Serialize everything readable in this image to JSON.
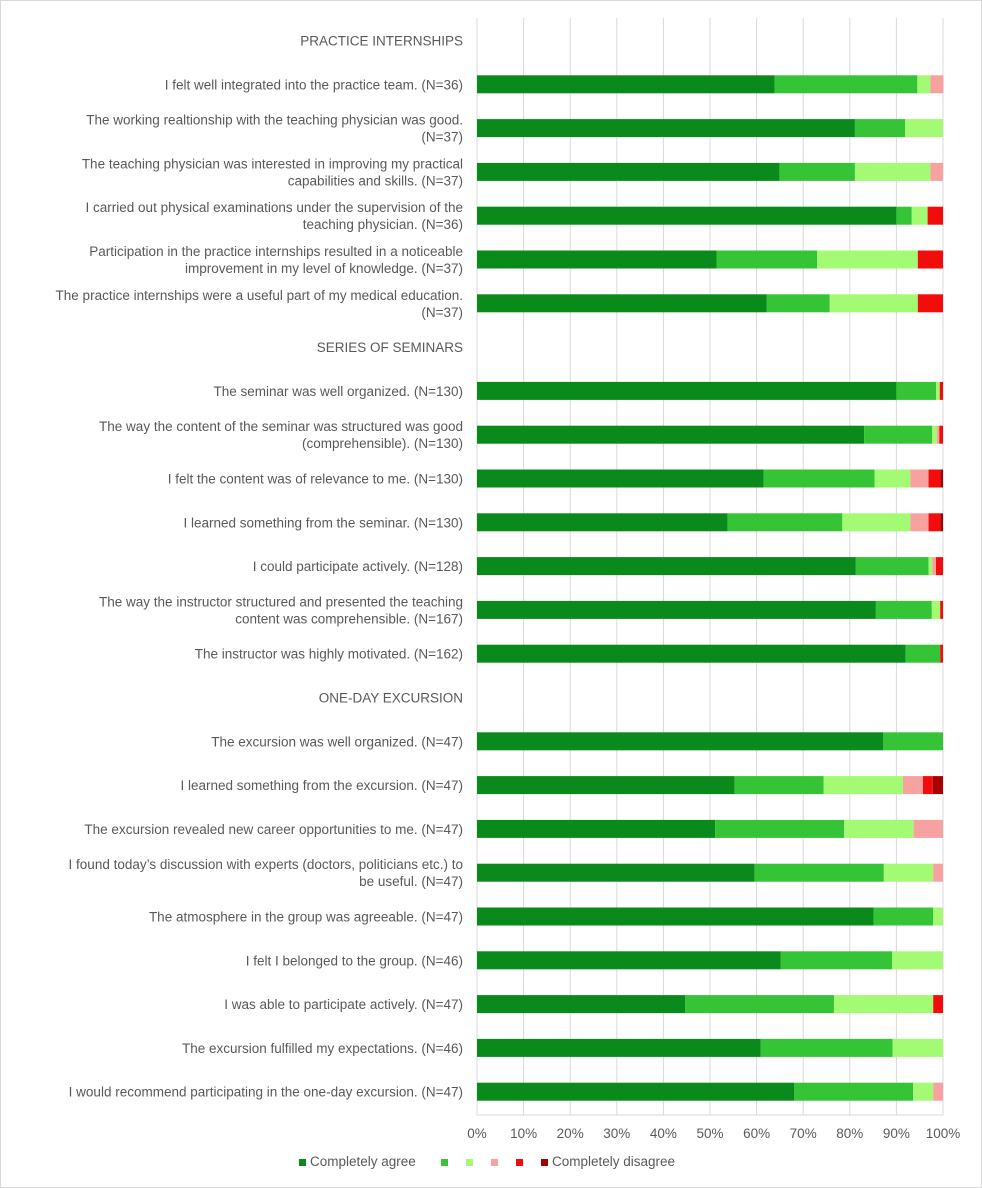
{
  "chart_data": {
    "type": "bar",
    "orientation": "horizontal",
    "stacked": "percent",
    "xlim": [
      0,
      100
    ],
    "x_ticks": [
      "0%",
      "10%",
      "20%",
      "30%",
      "40%",
      "50%",
      "60%",
      "70%",
      "80%",
      "90%",
      "100%"
    ],
    "grid": true,
    "legend_position": "bottom",
    "legend": [
      "Completely agree",
      "",
      "",
      "",
      "",
      "Completely disagree"
    ],
    "colors": [
      "#0a8a1a",
      "#35c435",
      "#a3fa73",
      "#f7a1a1",
      "#f30c0c",
      "#a80000"
    ],
    "sections": [
      {
        "title": "PRACTICE INTERNSHIPS",
        "items": [
          {
            "lines": [
              "I felt well integrated into the practice team. (N=36)"
            ],
            "values": [
              63.9,
              30.6,
              2.8,
              2.8,
              0,
              0
            ]
          },
          {
            "lines": [
              "The working realtionship with the teaching physician was good.",
              "(N=37)"
            ],
            "values": [
              81.1,
              10.8,
              8.1,
              0,
              0,
              0
            ]
          },
          {
            "lines": [
              "The teaching physician was interested in improving my practical",
              "capabilities and skills. (N=37)"
            ],
            "values": [
              64.9,
              16.2,
              16.2,
              2.7,
              0,
              0
            ]
          },
          {
            "lines": [
              "I carried out physical examinations under the supervision of the",
              "teaching physician. (N=36)"
            ],
            "values": [
              90.0,
              3.3,
              3.4,
              0,
              3.3,
              0
            ]
          },
          {
            "lines": [
              "Participation in the practice internships resulted in a noticeable",
              "improvement in my level of knowledge. (N=37)"
            ],
            "values": [
              51.4,
              21.6,
              21.6,
              0,
              5.4,
              0
            ]
          },
          {
            "lines": [
              "The practice internships were a useful part of my medical education.",
              "(N=37)"
            ],
            "values": [
              62.2,
              13.5,
              18.9,
              0,
              5.4,
              0
            ]
          }
        ]
      },
      {
        "title": "SERIES OF SEMINARS",
        "items": [
          {
            "lines": [
              "The seminar was well organized. (N=130)"
            ],
            "values": [
              90.0,
              8.5,
              0.8,
              0,
              0.7,
              0
            ]
          },
          {
            "lines": [
              "The way the content of the seminar was structured was good",
              "(comprehensible). (N=130)"
            ],
            "values": [
              83.1,
              14.6,
              1.0,
              0.5,
              0.8,
              0
            ]
          },
          {
            "lines": [
              "I felt the content was of relevance to me. (N=130)"
            ],
            "values": [
              61.5,
              23.8,
              7.7,
              3.9,
              2.5,
              0.6
            ]
          },
          {
            "lines": [
              "I learned something from the seminar. (N=130)"
            ],
            "values": [
              53.8,
              24.6,
              14.6,
              3.9,
              2.5,
              0.6
            ]
          },
          {
            "lines": [
              "I could participate actively. (N=128)"
            ],
            "values": [
              81.3,
              15.6,
              0.8,
              0.8,
              1.5,
              0
            ]
          },
          {
            "lines": [
              "The way the instructor structured and presented the teaching",
              "content was comprehensible. (N=167)"
            ],
            "values": [
              85.6,
              12.0,
              1.8,
              0,
              0.6,
              0
            ]
          },
          {
            "lines": [
              "The instructor was highly motivated. (N=162)"
            ],
            "values": [
              92.0,
              7.4,
              0,
              0,
              0.6,
              0
            ]
          }
        ]
      },
      {
        "title": "ONE-DAY EXCURSION",
        "items": [
          {
            "lines": [
              "The excursion was well organized. (N=47)"
            ],
            "values": [
              87.2,
              12.8,
              0,
              0,
              0,
              0
            ]
          },
          {
            "lines": [
              "I learned something from the excursion. (N=47)"
            ],
            "values": [
              55.3,
              19.1,
              17.0,
              4.3,
              2.1,
              2.2
            ]
          },
          {
            "lines": [
              "The excursion revealed new career opportunities to me. (N=47)"
            ],
            "values": [
              51.1,
              27.7,
              14.9,
              6.3,
              0,
              0
            ]
          },
          {
            "lines": [
              "I found today’s discussion with experts (doctors, politicians etc.) to",
              "be useful. (N=47)"
            ],
            "values": [
              59.6,
              27.7,
              10.6,
              2.1,
              0,
              0
            ]
          },
          {
            "lines": [
              "The atmosphere in the group was agreeable. (N=47)"
            ],
            "values": [
              85.1,
              12.8,
              2.1,
              0,
              0,
              0
            ]
          },
          {
            "lines": [
              "I felt I belonged to the group. (N=46)"
            ],
            "values": [
              65.2,
              23.9,
              10.9,
              0,
              0,
              0
            ]
          },
          {
            "lines": [
              "I was able to participate actively. (N=47)"
            ],
            "values": [
              44.7,
              31.9,
              21.3,
              0,
              2.1,
              0
            ]
          },
          {
            "lines": [
              "The excursion fulfilled my expectations. (N=46)"
            ],
            "values": [
              60.9,
              28.3,
              10.8,
              0,
              0,
              0
            ]
          },
          {
            "lines": [
              "I would recommend participating in the one-day excursion. (N=47)"
            ],
            "values": [
              68.1,
              25.5,
              4.3,
              2.1,
              0,
              0
            ]
          }
        ]
      }
    ]
  }
}
